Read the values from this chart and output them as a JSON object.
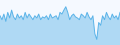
{
  "values": [
    62,
    55,
    65,
    52,
    68,
    58,
    72,
    60,
    55,
    65,
    58,
    62,
    55,
    68,
    58,
    65,
    60,
    55,
    62,
    58,
    65,
    55,
    60,
    58,
    62,
    55,
    65,
    58,
    60,
    62,
    55,
    68,
    65,
    72,
    78,
    68,
    55,
    62,
    65,
    60,
    58,
    55,
    65,
    62,
    58,
    68,
    60,
    55,
    62,
    30,
    20,
    50,
    45,
    62,
    55,
    68,
    60,
    55,
    65,
    58,
    62,
    55,
    68
  ],
  "line_color": "#5ab3e8",
  "fill_color": "#5ab3e8",
  "background_color": "#f5f9ff",
  "ylim": [
    10,
    90
  ]
}
